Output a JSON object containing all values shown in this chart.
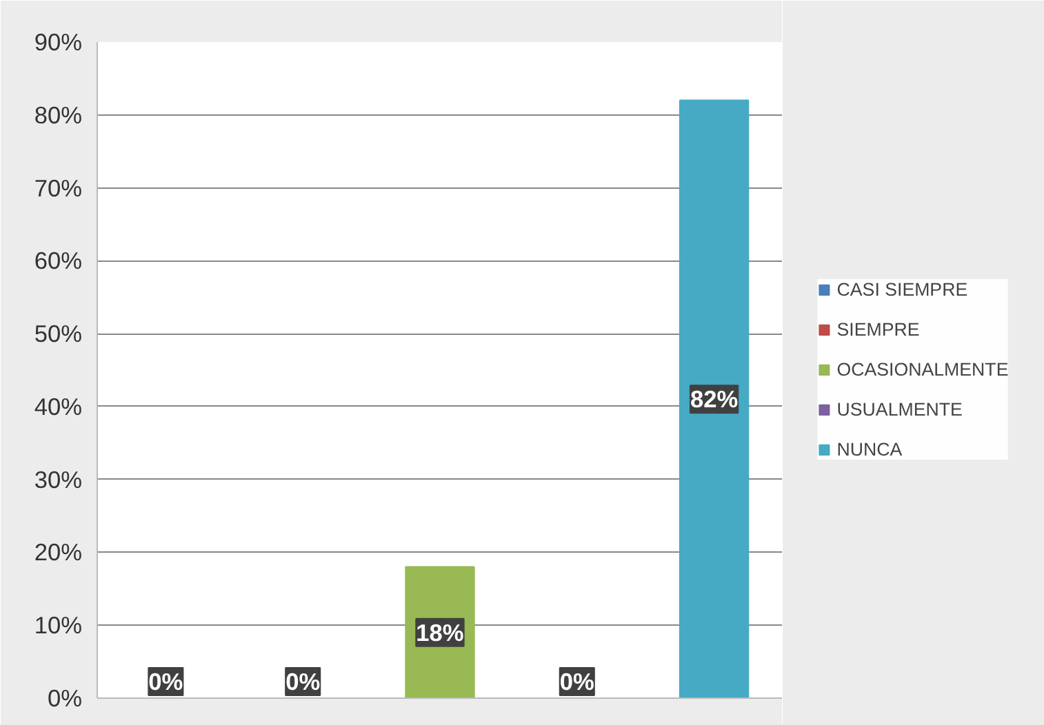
{
  "chart_data": {
    "type": "bar",
    "categories": [
      null,
      null,
      null,
      null,
      null
    ],
    "series": [
      {
        "name": "CASI SIEMPRE",
        "color": "#4a7ebb",
        "values": [
          0,
          null,
          null,
          null,
          null
        ],
        "value_labels": [
          "0%",
          null,
          null,
          null,
          null
        ]
      },
      {
        "name": "SIEMPRE",
        "color": "#be4b48",
        "values": [
          null,
          0,
          null,
          null,
          null
        ],
        "value_labels": [
          null,
          "0%",
          null,
          null,
          null
        ]
      },
      {
        "name": "OCASIONALMENTE",
        "color": "#98b954",
        "values": [
          null,
          null,
          18,
          null,
          null
        ],
        "value_labels": [
          null,
          null,
          "18%",
          null,
          null
        ]
      },
      {
        "name": "USUALMENTE",
        "color": "#7d60a0",
        "values": [
          null,
          null,
          null,
          0,
          null
        ],
        "value_labels": [
          null,
          null,
          null,
          "0%",
          null
        ]
      },
      {
        "name": "NUNCA",
        "color": "#46aac5",
        "values": [
          null,
          null,
          null,
          null,
          82
        ],
        "value_labels": [
          null,
          null,
          null,
          null,
          "82%"
        ]
      }
    ],
    "ylim": [
      0,
      90
    ],
    "yticks": [
      {
        "value": 0,
        "label": "0%"
      },
      {
        "value": 10,
        "label": "10%"
      },
      {
        "value": 20,
        "label": "20%"
      },
      {
        "value": 30,
        "label": "30%"
      },
      {
        "value": 40,
        "label": "40%"
      },
      {
        "value": 50,
        "label": "50%"
      },
      {
        "value": 60,
        "label": "60%"
      },
      {
        "value": 70,
        "label": "70%"
      },
      {
        "value": 80,
        "label": "80%"
      },
      {
        "value": 90,
        "label": "90%"
      }
    ],
    "grid": "y",
    "legend": "right",
    "tick_labels": "y"
  }
}
